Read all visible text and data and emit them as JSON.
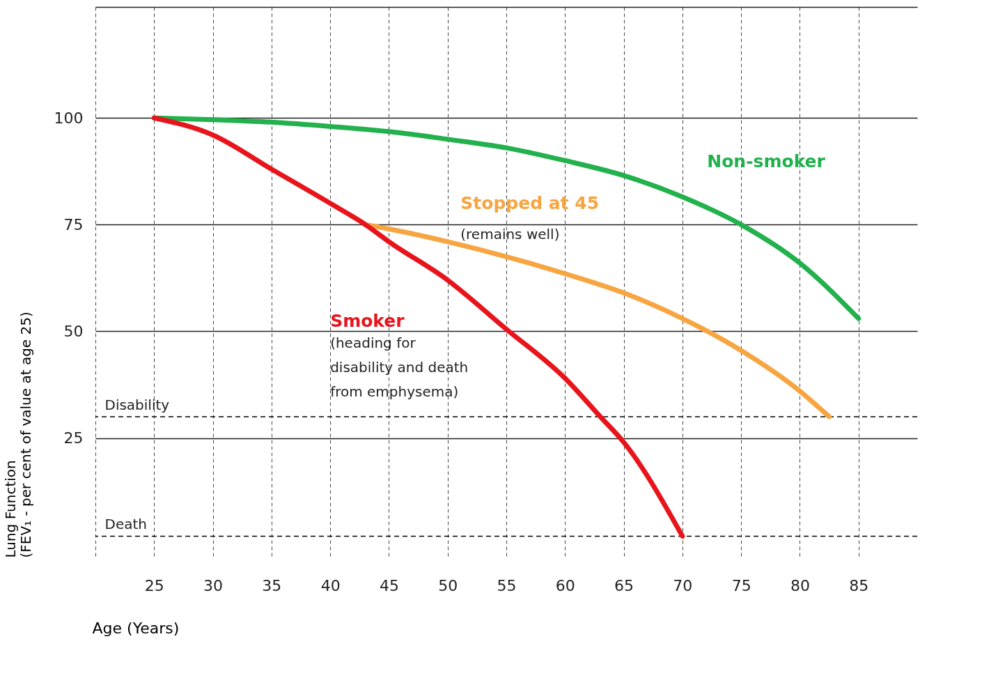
{
  "chart_data": {
    "type": "line",
    "xlabel": "Age (Years)",
    "ylabel": "Lung Function\n(FEV₁ - per cent of value at age 25)",
    "xlim": [
      20,
      90
    ],
    "xticks": [
      {
        "value": 20,
        "label": null
      },
      25,
      30,
      35,
      40,
      45,
      50,
      55,
      60,
      65,
      70,
      75,
      80,
      85
    ],
    "ylim": [
      -3,
      126
    ],
    "yticks": [
      25,
      50,
      75,
      100,
      {
        "value": 126,
        "label": null
      }
    ],
    "grid": true,
    "legend": false,
    "marker": "none",
    "line_style": "solid",
    "series": [
      {
        "name": "Non-smoker",
        "color": "#22b14c",
        "x": [
          25,
          30,
          35,
          40,
          45,
          50,
          55,
          60,
          65,
          70,
          75,
          80,
          85
        ],
        "values": [
          100,
          99.6,
          99,
          98,
          96.8,
          95,
          93,
          90,
          86.5,
          81.5,
          75,
          66,
          53
        ]
      },
      {
        "name": "Stopped at 45",
        "color": "#f7a541",
        "x": [
          43,
          45,
          50,
          55,
          60,
          65,
          70,
          75,
          80,
          82.5
        ],
        "values": [
          75,
          74,
          71,
          67.5,
          63.5,
          59,
          53,
          45.5,
          36,
          30
        ]
      },
      {
        "name": "Smoker",
        "color": "#e8141c",
        "x": [
          25,
          30,
          35,
          40,
          43,
          45,
          50,
          55,
          60,
          63,
          65,
          70
        ],
        "values": [
          100,
          96,
          88,
          80,
          75,
          71,
          62,
          50.5,
          39,
          30,
          24,
          2
        ]
      }
    ],
    "annotations": [
      "(remains well)",
      "(heading for\ndisability and death\nfrom emphysema)"
    ],
    "ref_lines": [
      {
        "axis": "y",
        "value": 30,
        "label": "Disability",
        "color": "#000000",
        "line_style": "dashed"
      },
      {
        "axis": "y",
        "value": 2,
        "label": "Death",
        "color": "#000000",
        "line_style": "dashed"
      }
    ]
  }
}
